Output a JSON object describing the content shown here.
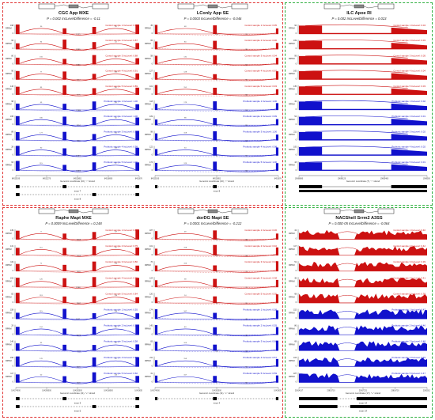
{
  "colors": {
    "control": "#cc1111",
    "probiotic": "#1111cc",
    "red_frame": "#e03030",
    "green_frame": "#30b040"
  },
  "panels": [
    {
      "id": "p1",
      "title": "CGC App MXE",
      "stat": "P = 0.002  IncLevelDifference = -0.11",
      "type": "mxe",
      "axis_caption": "Genomic coordinate (16), \"-\" strand",
      "ticks": [
        "84525190",
        "84522270",
        "84520851",
        "84518690",
        "84516764"
      ],
      "exon_labels": [
        "exon 7",
        "exon 8"
      ]
    },
    {
      "id": "p2",
      "title": "LConly App SE",
      "stat": "P = 0.0003  IncLevelDifference = -0.046",
      "type": "se",
      "axis_caption": "Genomic coordinate (16), \"-\" strand",
      "ticks": [
        "84525190",
        "84520851",
        "84516764"
      ],
      "exon_labels": [
        "exon 8"
      ]
    },
    {
      "id": "p3",
      "title": "ILC Apoe RI",
      "stat": "P = 0.002  IncLevelDifference = 0.023",
      "type": "ri",
      "axis_caption": "Genomic coordinate (7), \"-\" strand",
      "ticks": [
        "19696980",
        "19696120",
        "19695460",
        "19695000"
      ],
      "exon_labels": [
        "exon 3"
      ]
    },
    {
      "id": "p4",
      "title": "Raphe Mapt MXE",
      "stat": "P = 0.0009  IncLevelDifference = 0.248",
      "type": "mxe",
      "axis_caption": "Genomic coordinate (11), \"+\" strand",
      "ticks": [
        "104274000",
        "104290000",
        "104302000",
        "104318000",
        "104330000"
      ],
      "exon_labels": [
        "exon 3",
        "exon 5"
      ]
    },
    {
      "id": "p5",
      "title": "dorDG Mapt SE",
      "stat": "P = 0.0001  IncLevelDifference = -0.212",
      "type": "se",
      "axis_caption": "Genomic coordinate (11), \"+\" strand",
      "ticks": [
        "104274000",
        "104302000",
        "104330000"
      ],
      "exon_labels": [
        "exon 4"
      ]
    },
    {
      "id": "p6",
      "title": "NACShell Srrm2 A3SS",
      "stat": "P = 0.00E-05  IncLevelDifference = -0.064",
      "type": "a3ss",
      "axis_caption": "Genomic coordinate (17), \"+\" strand",
      "ticks": [
        "23814137",
        "23815710",
        "23817221",
        "23818720",
        "23820125"
      ],
      "exon_labels": [
        "exon 14"
      ]
    }
  ],
  "sample_labels": {
    "control": [
      "Control sample 1",
      "Control sample 2",
      "Control sample 3",
      "Control sample 4",
      "Control sample 5"
    ],
    "probiotic": [
      "Probiotic sample 1",
      "Probiotic sample 2",
      "Probiotic sample 3",
      "Probiotic sample 4",
      "Probiotic sample 5"
    ],
    "inc_prefix": "IncLevel"
  },
  "inc_levels": {
    "p1": [
      "0.90",
      "0.87",
      "0.88",
      "0.91",
      "0.89",
      "1.00",
      "1.00",
      "0.98",
      "0.99",
      "1.00"
    ],
    "p2": [
      "0.95",
      "0.96",
      "0.94",
      "0.97",
      "0.93",
      "1.00",
      "0.99",
      "1.00",
      "0.98",
      "1.00"
    ],
    "p3": [
      "0.04",
      "0.03",
      "0.05",
      "0.04",
      "0.03",
      "0.02",
      "0.01",
      "0.02",
      "0.02",
      "0.01"
    ],
    "p4": [
      "0.82",
      "0.75",
      "0.80",
      "0.79",
      "0.84",
      "0.55",
      "0.52",
      "0.58",
      "0.50",
      "0.60"
    ],
    "p5": [
      "0.36",
      "0.40",
      "0.34",
      "0.38",
      "0.35",
      "0.58",
      "0.55",
      "0.60",
      "0.57",
      "0.59"
    ],
    "p6": [
      "0.40",
      "0.42",
      "0.39",
      "0.41",
      "0.38",
      "0.47",
      "0.46",
      "0.48",
      "0.45",
      "0.47"
    ]
  }
}
